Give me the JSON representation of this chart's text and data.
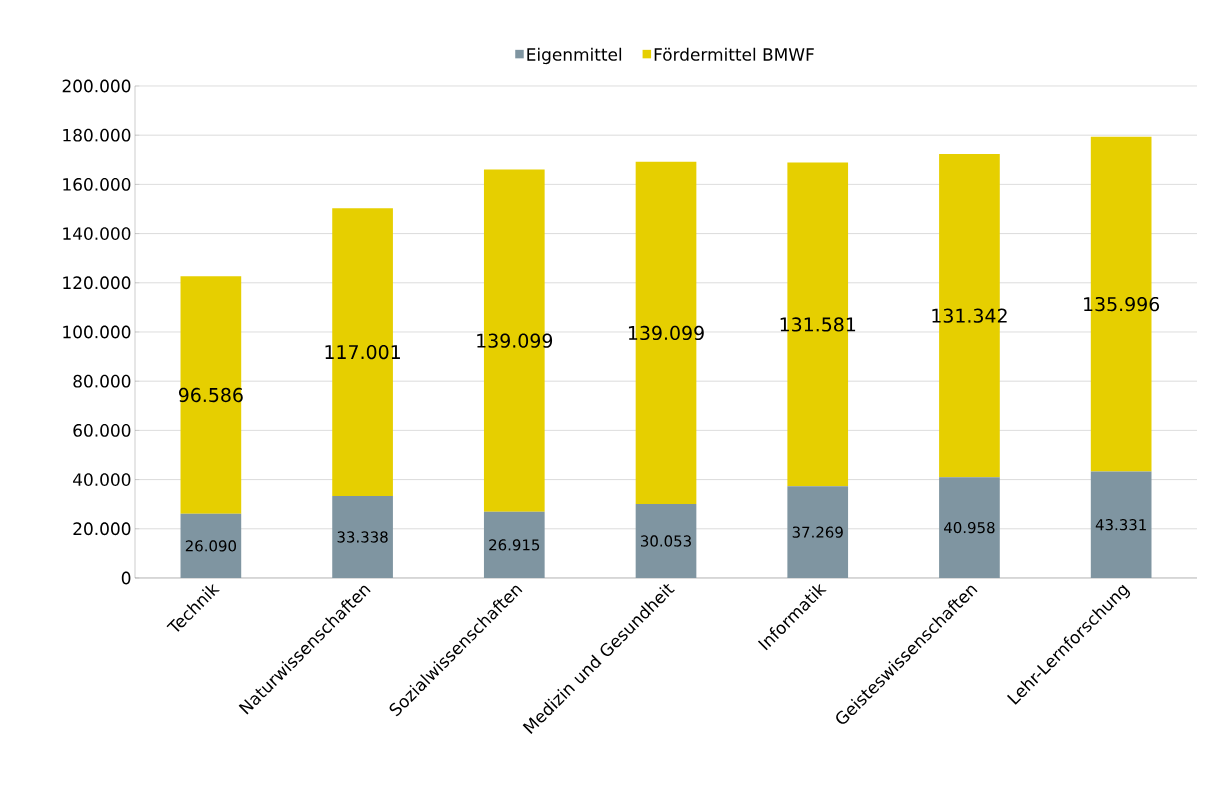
{
  "chart_data": {
    "type": "bar",
    "stacked": true,
    "categories": [
      "Technik",
      "Naturwissenschaften",
      "Sozialwissenschaften",
      "Medizin und Gesundheit",
      "Informatik",
      "Geisteswissenschaften",
      "Lehr-Lernforschung"
    ],
    "series": [
      {
        "name": "Eigenmittel",
        "color": "#7f95a1",
        "values": [
          26090,
          33338,
          26915,
          30053,
          37269,
          40958,
          43331
        ],
        "value_labels": [
          "26.090",
          "33.338",
          "26.915",
          "30.053",
          "37.269",
          "40.958",
          "43.331"
        ]
      },
      {
        "name": "Fördermittel BMWF",
        "color": "#e6cf00",
        "values": [
          96586,
          117001,
          139099,
          139099,
          131581,
          131342,
          135996
        ],
        "value_labels": [
          "96.586",
          "117.001",
          "139.099",
          "139.099",
          "131.581",
          "131.342",
          "135.996"
        ]
      }
    ],
    "ylim": [
      0,
      200000
    ],
    "yticks": [
      {
        "value": 0,
        "label": "0"
      },
      {
        "value": 20000,
        "label": "20.000"
      },
      {
        "value": 40000,
        "label": "40.000"
      },
      {
        "value": 60000,
        "label": "60.000"
      },
      {
        "value": 80000,
        "label": "80.000"
      },
      {
        "value": 100000,
        "label": "100.000"
      },
      {
        "value": 120000,
        "label": "120.000"
      },
      {
        "value": 140000,
        "label": "140.000"
      },
      {
        "value": 160000,
        "label": "160.000"
      },
      {
        "value": 180000,
        "label": "180.000"
      },
      {
        "value": 200000,
        "label": "200.000"
      }
    ],
    "grid": "y",
    "legend": "top"
  }
}
